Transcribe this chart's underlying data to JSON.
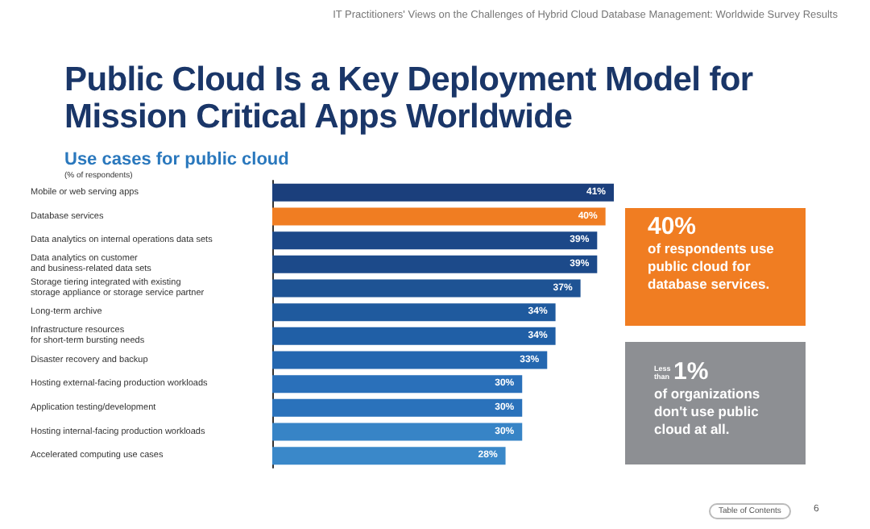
{
  "chart_data": {
    "type": "bar",
    "orientation": "horizontal",
    "title": "Public Cloud Is a Key Deployment Model for Mission Critical Apps Worldwide",
    "subtitle": "Use cases for public cloud",
    "xlabel": "(% of respondents)",
    "categories": [
      "Mobile or web serving apps",
      "Database services",
      "Data analytics on internal operations data sets",
      "Data analytics on customer\nand business-related data sets",
      "Storage tiering integrated with existing\nstorage appliance or storage service partner",
      "Long-term archive",
      "Infrastructure resources\nfor short-term bursting needs",
      "Disaster recovery and backup",
      "Hosting external-facing production workloads",
      "Application testing/development",
      "Hosting internal-facing production workloads",
      "Accelerated computing use cases"
    ],
    "values": [
      41,
      40,
      39,
      39,
      37,
      34,
      34,
      33,
      30,
      30,
      30,
      28
    ],
    "value_labels": [
      "41%",
      "40%",
      "39%",
      "39%",
      "37%",
      "34%",
      "34%",
      "33%",
      "30%",
      "30%",
      "30%",
      "28%"
    ],
    "colors": [
      "#1b3f7c",
      "#f07d22",
      "#1c4888",
      "#1c4a8a",
      "#1e5394",
      "#1f5a9e",
      "#205fa6",
      "#2467b0",
      "#2a70ba",
      "#2a72bb",
      "#3784c6",
      "#3a88c9"
    ],
    "annotations": [
      "IT Practitioners' Views on the Challenges of Hybrid Cloud Database Management: Worldwide Survey Results",
      "40%",
      "of respondents use public cloud for database services.",
      "Less than",
      "1%",
      "of organizations don't use public cloud at all.",
      "Table of Contents",
      "6"
    ]
  }
}
